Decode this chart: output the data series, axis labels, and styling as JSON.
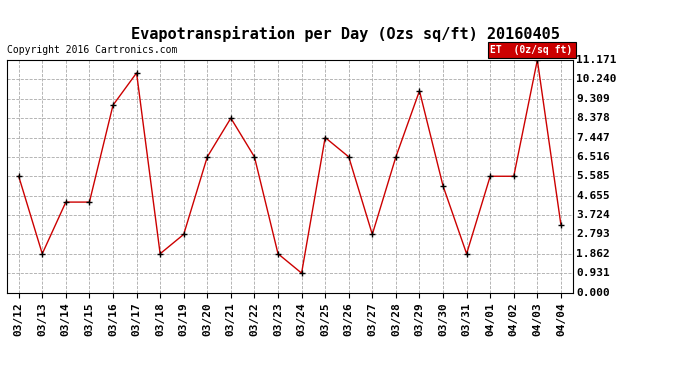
{
  "title": "Evapotranspiration per Day (Ozs sq/ft) 20160405",
  "copyright": "Copyright 2016 Cartronics.com",
  "legend_label": "ET  (0z/sq ft)",
  "x_labels": [
    "03/12",
    "03/13",
    "03/14",
    "03/15",
    "03/16",
    "03/17",
    "03/18",
    "03/19",
    "03/20",
    "03/21",
    "03/22",
    "03/23",
    "03/24",
    "03/25",
    "03/26",
    "03/27",
    "03/28",
    "03/29",
    "03/30",
    "03/31",
    "04/01",
    "04/02",
    "04/03",
    "04/04"
  ],
  "y_values": [
    5.585,
    1.862,
    4.344,
    4.344,
    8.999,
    10.55,
    1.862,
    2.793,
    6.516,
    8.378,
    6.516,
    1.862,
    0.931,
    7.447,
    6.516,
    2.793,
    6.516,
    9.688,
    5.12,
    1.862,
    5.585,
    5.585,
    11.171,
    3.255
  ],
  "y_ticks": [
    0.0,
    0.931,
    1.862,
    2.793,
    3.724,
    4.655,
    5.585,
    6.516,
    7.447,
    8.378,
    9.309,
    10.24,
    11.171
  ],
  "line_color": "#cc0000",
  "marker_color": "#000000",
  "background_color": "#ffffff",
  "grid_color": "#aaaaaa",
  "title_fontsize": 11,
  "copyright_fontsize": 7,
  "tick_fontsize": 8,
  "legend_bg_color": "#cc0000",
  "legend_text_color": "#ffffff"
}
